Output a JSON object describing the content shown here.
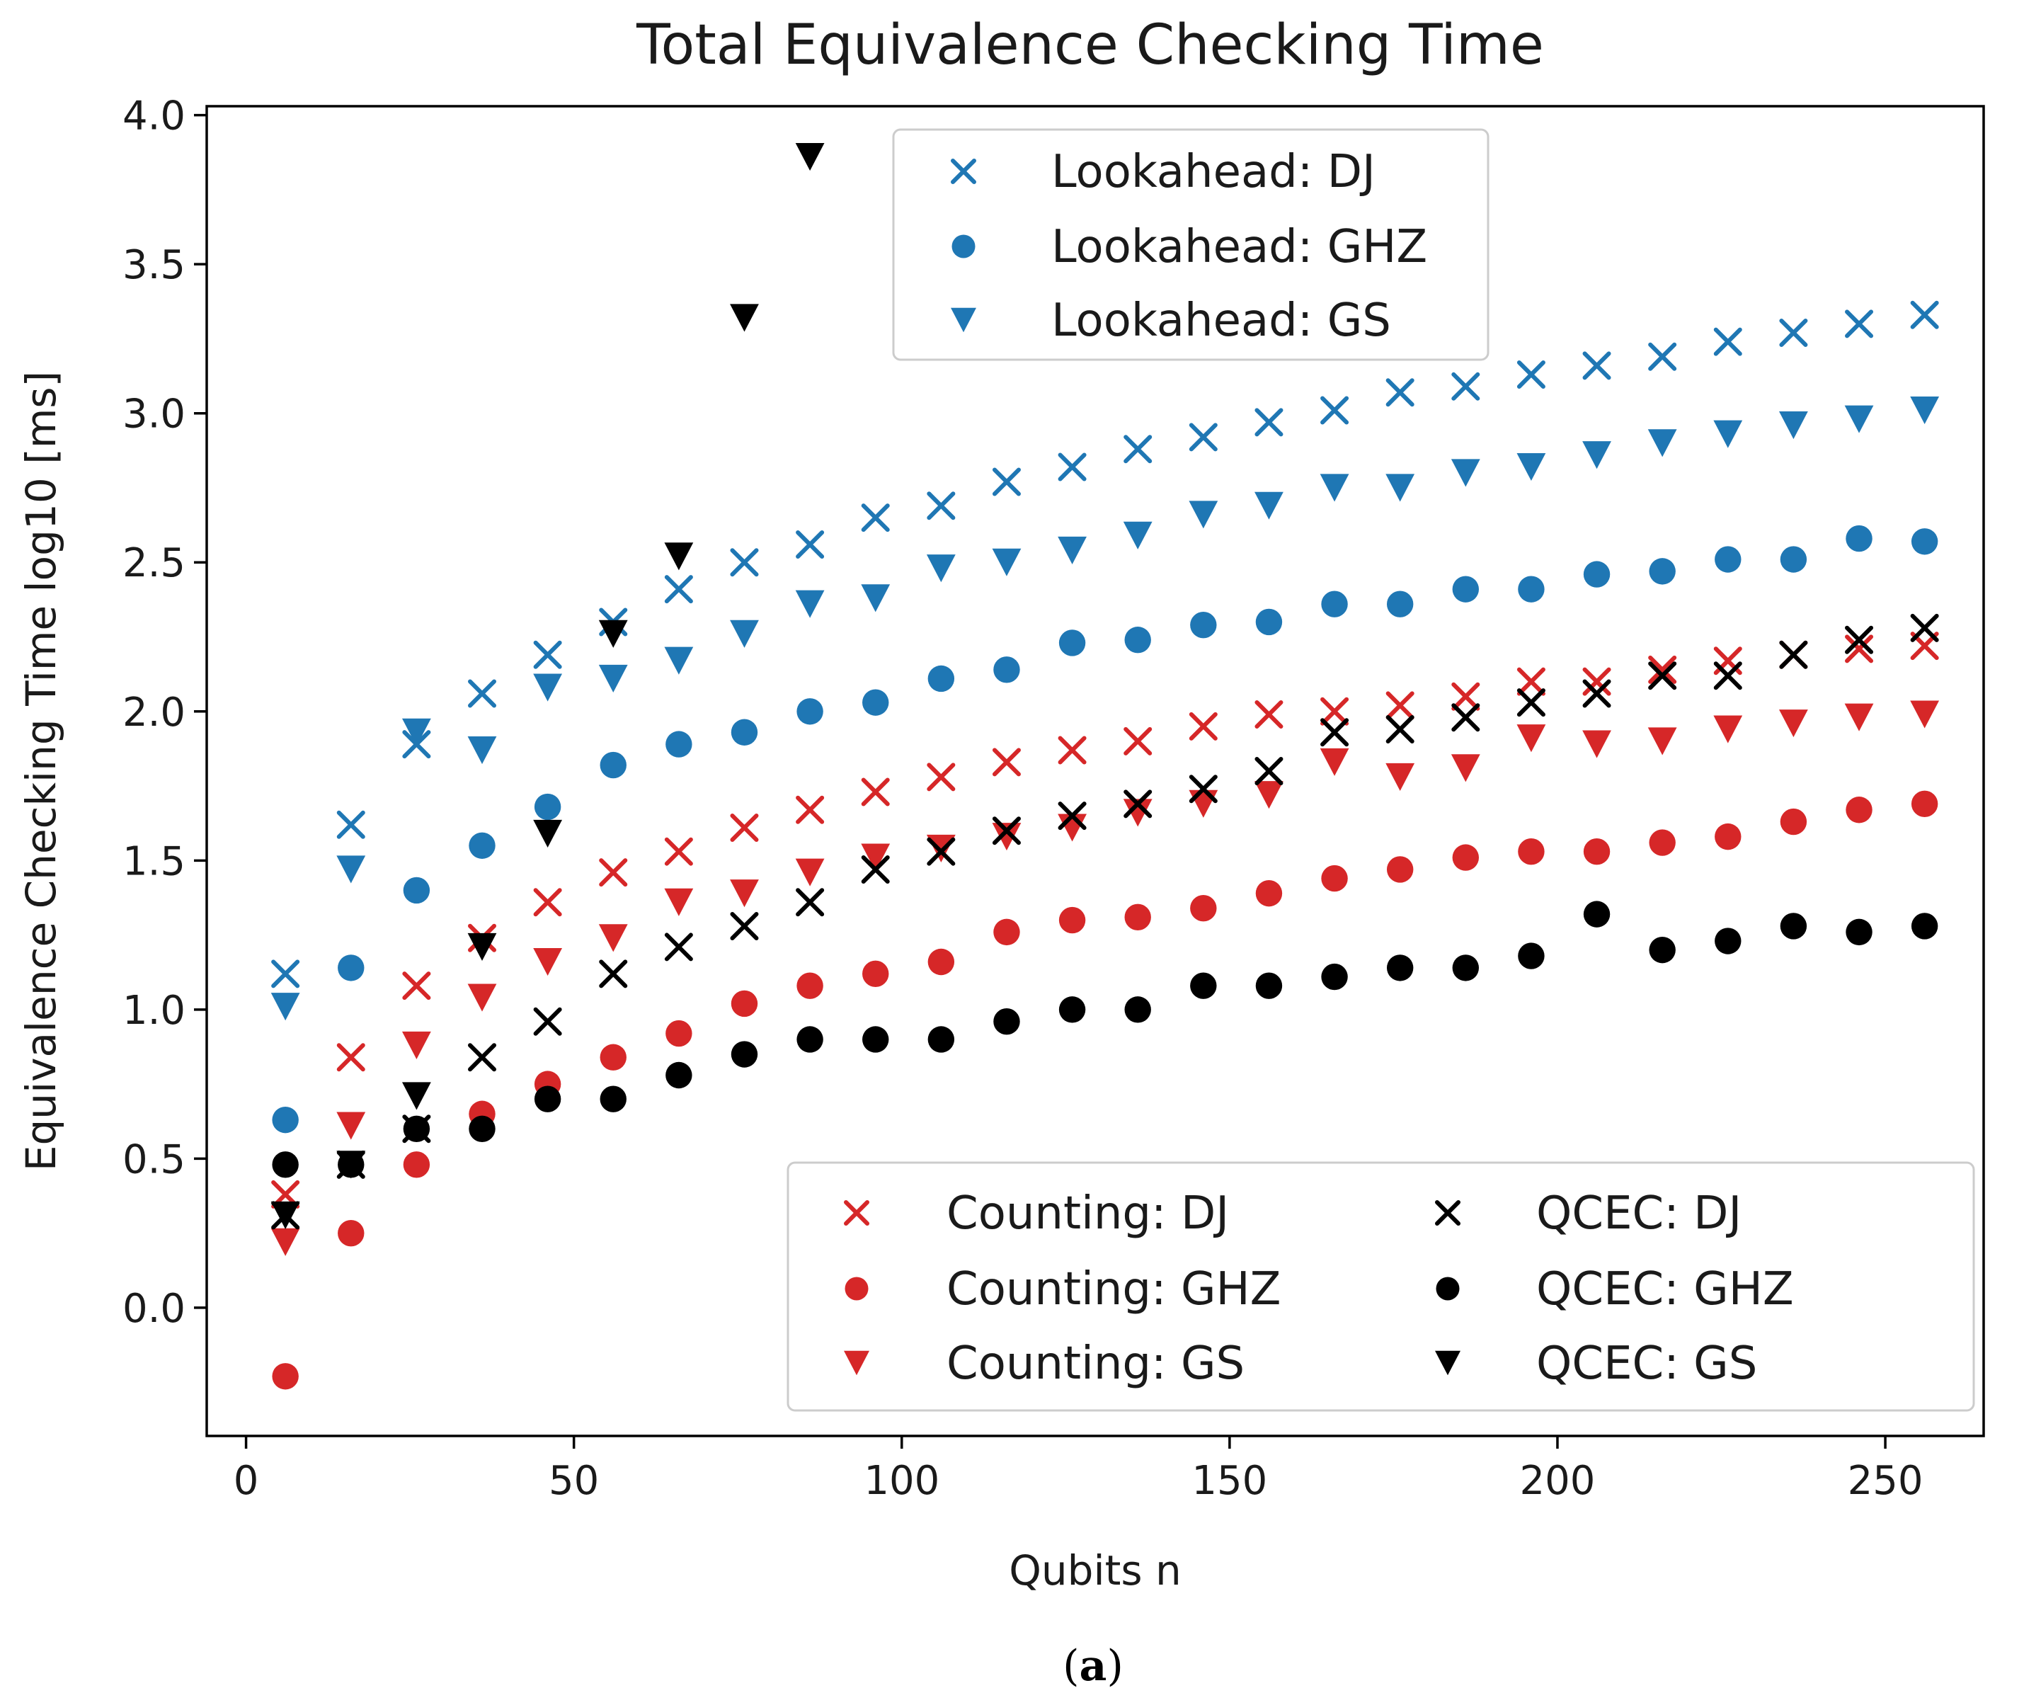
{
  "chart_data": {
    "type": "scatter",
    "title": "Total Equivalence Checking Time",
    "xlabel": "Qubits n",
    "ylabel": "Equivalence Checking Time log10 [ms]",
    "xlim": [
      -6,
      265
    ],
    "ylim": [
      -0.43,
      4.03
    ],
    "xticks": [
      0,
      50,
      100,
      150,
      200,
      250
    ],
    "yticks": [
      0.0,
      0.5,
      1.0,
      1.5,
      2.0,
      2.5,
      3.0,
      3.5,
      4.0
    ],
    "xtick_labels": [
      "0",
      "50",
      "100",
      "150",
      "200",
      "250"
    ],
    "ytick_labels": [
      "0.0",
      "0.5",
      "1.0",
      "1.5",
      "2.0",
      "2.5",
      "3.0",
      "3.5",
      "4.0"
    ],
    "grid": false,
    "colors": {
      "lookahead": "#1f77b4",
      "counting": "#d62728",
      "qcec": "#000000"
    },
    "legends": [
      {
        "placement": "upper-center",
        "series": [
          "Lookahead: DJ",
          "Lookahead: GHZ",
          "Lookahead: GS"
        ]
      },
      {
        "placement": "lower-right",
        "columns": 2,
        "series": [
          "Counting: DJ",
          "Counting: GHZ",
          "Counting: GS",
          "QCEC: DJ",
          "QCEC: GHZ",
          "QCEC: GS"
        ]
      }
    ],
    "x": [
      6,
      16,
      26,
      36,
      46,
      56,
      66,
      76,
      86,
      96,
      106,
      116,
      126,
      136,
      146,
      156,
      166,
      176,
      186,
      196,
      206,
      216,
      226,
      236,
      246,
      256
    ],
    "series": [
      {
        "name": "Lookahead: DJ",
        "marker": "x",
        "color": "#1f77b4",
        "values": [
          1.12,
          1.62,
          1.89,
          2.06,
          2.19,
          2.3,
          2.41,
          2.5,
          2.56,
          2.65,
          2.69,
          2.77,
          2.82,
          2.88,
          2.92,
          2.97,
          3.01,
          3.07,
          3.09,
          3.13,
          3.16,
          3.19,
          3.24,
          3.27,
          3.3,
          3.33
        ]
      },
      {
        "name": "Lookahead: GHZ",
        "marker": "circle",
        "color": "#1f77b4",
        "values": [
          0.63,
          1.14,
          1.4,
          1.55,
          1.68,
          1.82,
          1.89,
          1.93,
          2.0,
          2.03,
          2.11,
          2.14,
          2.23,
          2.24,
          2.29,
          2.3,
          2.36,
          2.36,
          2.41,
          2.41,
          2.46,
          2.47,
          2.51,
          2.51,
          2.58,
          2.57
        ]
      },
      {
        "name": "Lookahead: GS",
        "marker": "triangle-down",
        "color": "#1f77b4",
        "values": [
          1.01,
          1.47,
          1.93,
          1.87,
          2.08,
          2.11,
          2.17,
          2.26,
          2.36,
          2.38,
          2.48,
          2.5,
          2.54,
          2.59,
          2.66,
          2.69,
          2.75,
          2.75,
          2.8,
          2.82,
          2.86,
          2.9,
          2.93,
          2.96,
          2.98,
          3.01
        ]
      },
      {
        "name": "Counting: DJ",
        "marker": "x",
        "color": "#d62728",
        "values": [
          0.38,
          0.84,
          1.08,
          1.24,
          1.36,
          1.46,
          1.53,
          1.61,
          1.67,
          1.73,
          1.78,
          1.83,
          1.87,
          1.9,
          1.95,
          1.99,
          2.0,
          2.02,
          2.05,
          2.1,
          2.1,
          2.14,
          2.17,
          2.19,
          2.21,
          2.22
        ]
      },
      {
        "name": "Counting: GHZ",
        "marker": "circle",
        "color": "#d62728",
        "values": [
          -0.23,
          0.25,
          0.48,
          0.65,
          0.75,
          0.84,
          0.92,
          1.02,
          1.08,
          1.12,
          1.16,
          1.26,
          1.3,
          1.31,
          1.34,
          1.39,
          1.44,
          1.47,
          1.51,
          1.53,
          1.53,
          1.56,
          1.58,
          1.63,
          1.67,
          1.69
        ]
      },
      {
        "name": "Counting: GS",
        "marker": "triangle-down",
        "color": "#d62728",
        "values": [
          0.22,
          0.61,
          0.88,
          1.04,
          1.16,
          1.24,
          1.36,
          1.39,
          1.46,
          1.51,
          1.54,
          1.58,
          1.61,
          1.66,
          1.69,
          1.72,
          1.83,
          1.78,
          1.81,
          1.91,
          1.89,
          1.9,
          1.94,
          1.96,
          1.98,
          1.99
        ]
      },
      {
        "name": "QCEC: DJ",
        "marker": "x",
        "color": "#000000",
        "values": [
          0.31,
          0.48,
          0.6,
          0.84,
          0.96,
          1.12,
          1.21,
          1.28,
          1.36,
          1.47,
          1.53,
          1.6,
          1.65,
          1.69,
          1.74,
          1.8,
          1.93,
          1.94,
          1.98,
          2.03,
          2.06,
          2.12,
          2.12,
          2.19,
          2.24,
          2.28
        ]
      },
      {
        "name": "QCEC: GHZ",
        "marker": "circle",
        "color": "#000000",
        "values": [
          0.48,
          0.48,
          0.6,
          0.6,
          0.7,
          0.7,
          0.78,
          0.85,
          0.9,
          0.9,
          0.9,
          0.96,
          1.0,
          1.0,
          1.08,
          1.08,
          1.11,
          1.14,
          1.14,
          1.18,
          1.32,
          1.2,
          1.23,
          1.28,
          1.26,
          1.28
        ]
      },
      {
        "name": "QCEC: GS",
        "x": [
          6,
          16,
          26,
          36,
          46,
          56,
          66,
          76,
          86
        ],
        "marker": "triangle-down",
        "color": "#000000",
        "values": [
          0.31,
          0.48,
          0.71,
          1.21,
          1.59,
          2.26,
          2.52,
          3.32,
          3.86
        ]
      }
    ]
  },
  "caption": {
    "open": "(",
    "label": "a",
    "close": ")"
  }
}
